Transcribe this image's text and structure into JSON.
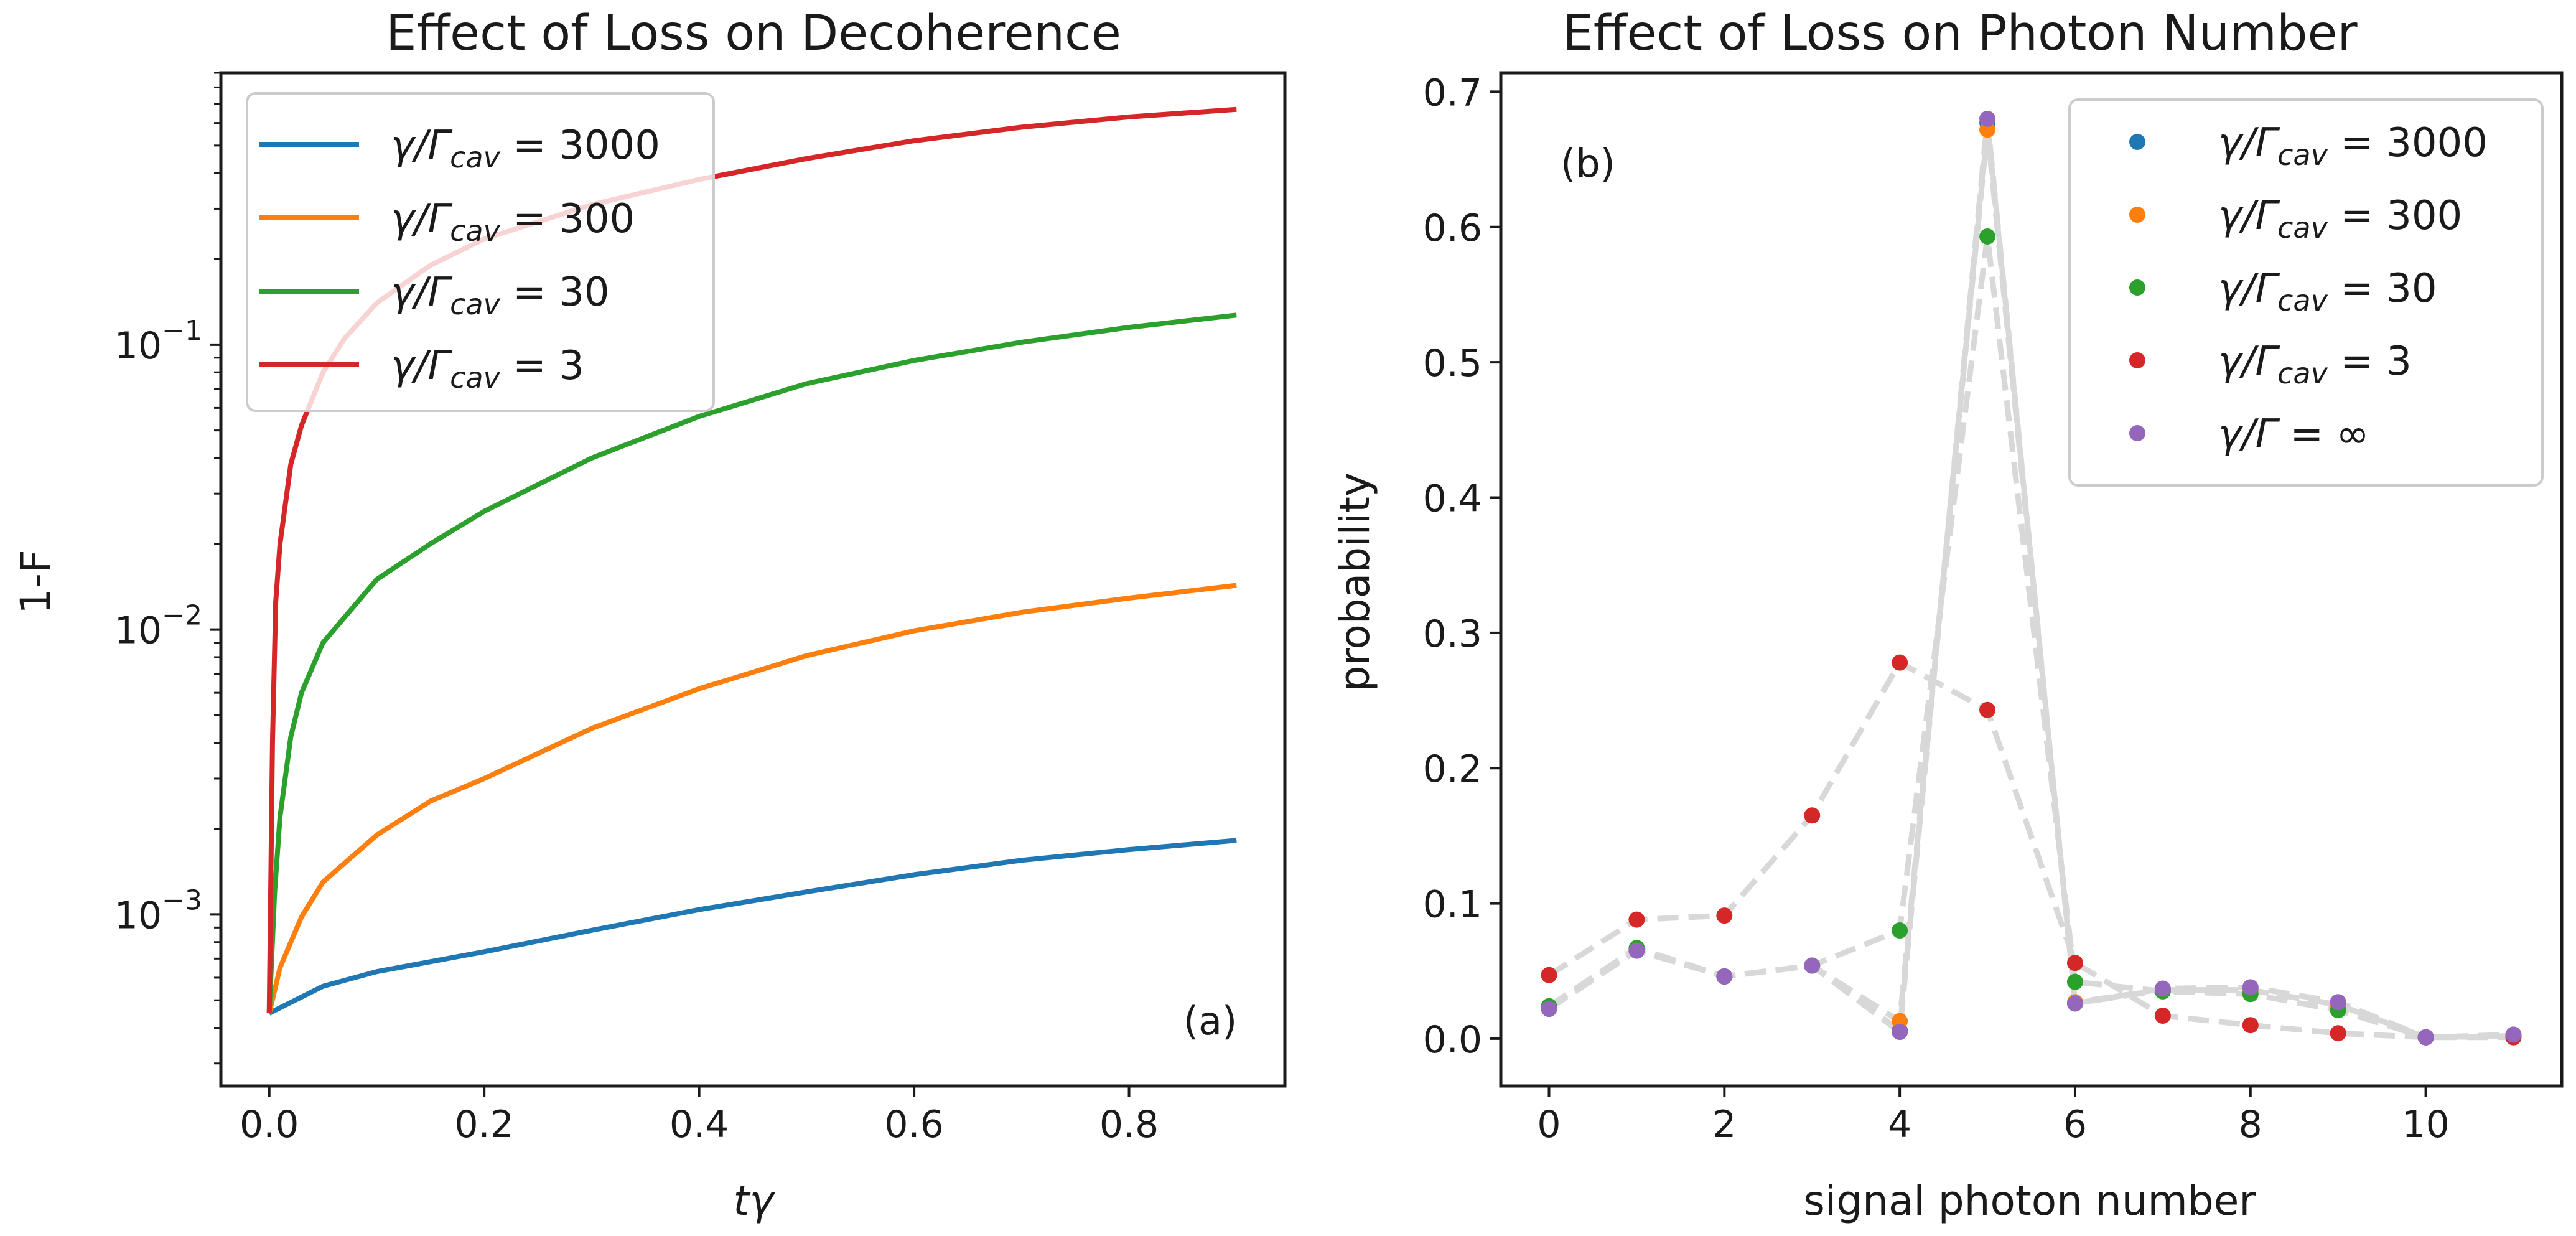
{
  "chart_data": [
    {
      "type": "line",
      "title": "Effect of Loss on Decoherence",
      "xlabel": "tγ",
      "ylabel": "1-F",
      "xscale": "linear",
      "yscale": "log",
      "xlim": [
        -0.045,
        0.945
      ],
      "ylim": [
        0.00025,
        0.9
      ],
      "xticks": [
        0.0,
        0.2,
        0.4,
        0.6,
        0.8
      ],
      "xtick_labels": [
        "0.0",
        "0.2",
        "0.4",
        "0.6",
        "0.8"
      ],
      "yticks": [
        0.001,
        0.01,
        0.1
      ],
      "ytick_labels": [
        {
          "base": "10",
          "exp": "−3"
        },
        {
          "base": "10",
          "exp": "−2"
        },
        {
          "base": "10",
          "exp": "−1"
        }
      ],
      "panel_label": "(a)",
      "legend_position": "upper-left",
      "series": [
        {
          "name": "3000",
          "color": "#1f77b4",
          "x": [
            0,
            0.05,
            0.1,
            0.2,
            0.3,
            0.4,
            0.5,
            0.6,
            0.7,
            0.8,
            0.9
          ],
          "y": [
            0.00045,
            0.00056,
            0.00063,
            0.00074,
            0.00088,
            0.00104,
            0.0012,
            0.00138,
            0.00155,
            0.00169,
            0.00182
          ]
        },
        {
          "name": "300",
          "color": "#ff7f0e",
          "x": [
            0,
            0.01,
            0.03,
            0.05,
            0.1,
            0.15,
            0.2,
            0.3,
            0.4,
            0.5,
            0.6,
            0.7,
            0.8,
            0.9
          ],
          "y": [
            0.00045,
            0.00065,
            0.00098,
            0.0013,
            0.0019,
            0.0025,
            0.003,
            0.0045,
            0.0062,
            0.0081,
            0.0099,
            0.0115,
            0.0129,
            0.0143
          ]
        },
        {
          "name": "30",
          "color": "#2ca02c",
          "x": [
            0,
            0.005,
            0.01,
            0.02,
            0.03,
            0.05,
            0.1,
            0.15,
            0.2,
            0.3,
            0.4,
            0.5,
            0.6,
            0.7,
            0.8,
            0.9
          ],
          "y": [
            0.00045,
            0.0012,
            0.0022,
            0.0042,
            0.006,
            0.009,
            0.015,
            0.02,
            0.026,
            0.04,
            0.056,
            0.073,
            0.088,
            0.102,
            0.115,
            0.127
          ]
        },
        {
          "name": "3",
          "color": "#d62728",
          "x": [
            0,
            0.003,
            0.006,
            0.01,
            0.02,
            0.03,
            0.05,
            0.07,
            0.1,
            0.15,
            0.2,
            0.3,
            0.4,
            0.5,
            0.6,
            0.7,
            0.8,
            0.9
          ],
          "y": [
            0.00045,
            0.004,
            0.0125,
            0.02,
            0.038,
            0.052,
            0.08,
            0.105,
            0.14,
            0.19,
            0.235,
            0.31,
            0.38,
            0.45,
            0.52,
            0.58,
            0.63,
            0.67
          ]
        }
      ]
    },
    {
      "type": "scatter",
      "title": "Effect of Loss on Photon Number",
      "xlabel": "signal photon number",
      "ylabel": "probability",
      "xlim": [
        -0.55,
        11.55
      ],
      "ylim": [
        -0.035,
        0.714
      ],
      "xticks": [
        0,
        2,
        4,
        6,
        8,
        10
      ],
      "xtick_labels": [
        "0",
        "2",
        "4",
        "6",
        "8",
        "10"
      ],
      "yticks": [
        0.0,
        0.1,
        0.2,
        0.3,
        0.4,
        0.5,
        0.6,
        0.7
      ],
      "ytick_labels": [
        "0.0",
        "0.1",
        "0.2",
        "0.3",
        "0.4",
        "0.5",
        "0.6",
        "0.7"
      ],
      "panel_label": "(b)",
      "legend_position": "upper-right",
      "connector_color": "#d8d8d8",
      "x": [
        0,
        1,
        2,
        3,
        4,
        5,
        6,
        7,
        8,
        9,
        10,
        11
      ],
      "series": [
        {
          "name": "3000",
          "color": "#1f77b4",
          "values": [
            0.023,
            0.066,
            0.046,
            0.054,
            0.006,
            0.677,
            0.026,
            0.036,
            0.036,
            0.025,
            0.001,
            0.002
          ]
        },
        {
          "name": "300",
          "color": "#ff7f0e",
          "values": [
            0.023,
            0.066,
            0.046,
            0.054,
            0.013,
            0.672,
            0.027,
            0.036,
            0.036,
            0.025,
            0.001,
            0.002
          ]
        },
        {
          "name": "30",
          "color": "#2ca02c",
          "values": [
            0.024,
            0.067,
            0.046,
            0.054,
            0.08,
            0.593,
            0.042,
            0.035,
            0.033,
            0.021,
            0.001,
            0.002
          ]
        },
        {
          "name": "3",
          "color": "#d62728",
          "values": [
            0.047,
            0.088,
            0.091,
            0.165,
            0.278,
            0.243,
            0.056,
            0.017,
            0.01,
            0.004,
            0.001,
            0.001
          ]
        },
        {
          "name": "∞",
          "color": "#9467bd",
          "values": [
            0.022,
            0.065,
            0.046,
            0.054,
            0.005,
            0.68,
            0.026,
            0.037,
            0.038,
            0.027,
            0.001,
            0.003
          ]
        }
      ]
    }
  ],
  "legend_prefix": "γ/Γ",
  "legend_subscript": "cav",
  "legend_equals": " = ",
  "legend_inf_prefix": "γ/Γ = "
}
